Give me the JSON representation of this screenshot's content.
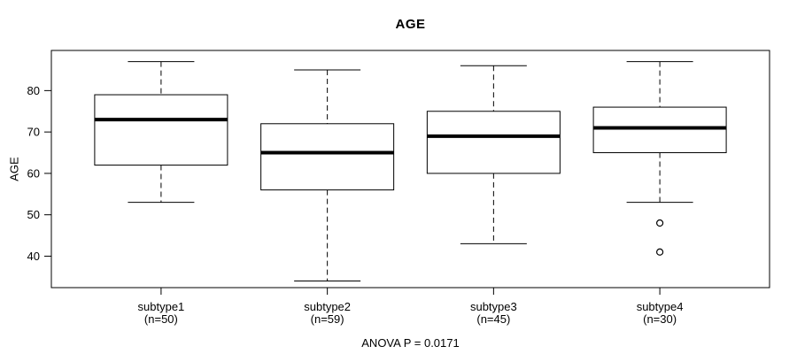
{
  "chart_data": {
    "type": "boxplot",
    "title": "AGE",
    "xlabel": "",
    "ylabel": "AGE",
    "annotation": "ANOVA P = 0.0171",
    "ylim": [
      32.4,
      89.7
    ],
    "yticks": [
      40,
      50,
      60,
      70,
      80
    ],
    "grid": false,
    "categories": [
      "subtype1",
      "subtype2",
      "subtype3",
      "subtype4"
    ],
    "category_sublabels": [
      "(n=50)",
      "(n=59)",
      "(n=45)",
      "(n=30)"
    ],
    "series": [
      {
        "name": "subtype1",
        "n": 50,
        "whisker_low": 53,
        "q1": 62,
        "median": 73,
        "q3": 79,
        "whisker_high": 87,
        "outliers": []
      },
      {
        "name": "subtype2",
        "n": 59,
        "whisker_low": 34,
        "q1": 56,
        "median": 65,
        "q3": 72,
        "whisker_high": 85,
        "outliers": []
      },
      {
        "name": "subtype3",
        "n": 45,
        "whisker_low": 43,
        "q1": 60,
        "median": 69,
        "q3": 75,
        "whisker_high": 86,
        "outliers": []
      },
      {
        "name": "subtype4",
        "n": 30,
        "whisker_low": 53,
        "q1": 65,
        "median": 71,
        "q3": 76,
        "whisker_high": 87,
        "outliers": [
          48,
          41
        ]
      }
    ],
    "colors": {
      "line": "#000000",
      "median": "#000000",
      "box_fill": "#ffffff",
      "background": "#ffffff"
    }
  }
}
